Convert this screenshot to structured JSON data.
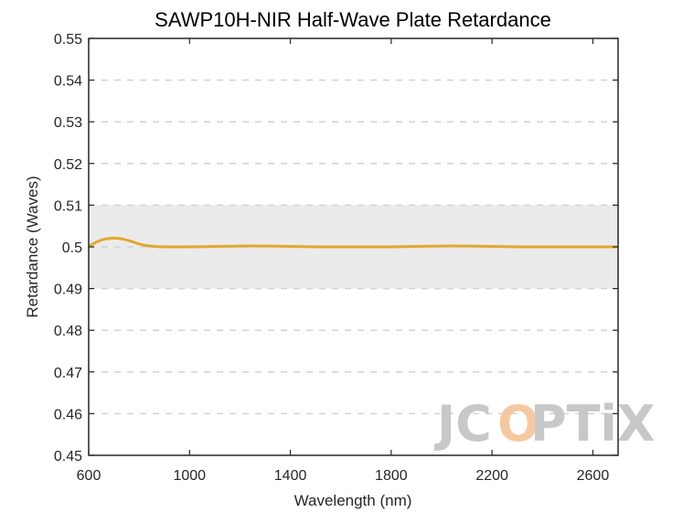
{
  "chart_data": {
    "type": "line",
    "title": "SAWP10H-NIR Half-Wave Plate Retardance",
    "xlabel": "Wavelength (nm)",
    "ylabel": "Retardance (Waves)",
    "xlim": [
      600,
      2700
    ],
    "ylim": [
      0.45,
      0.55
    ],
    "xticks": [
      600,
      1000,
      1400,
      1800,
      2200,
      2600
    ],
    "xtick_labels": [
      "600",
      "1000",
      "1400",
      "1800",
      "2200",
      "2600"
    ],
    "yticks": [
      0.45,
      0.46,
      0.47,
      0.48,
      0.49,
      0.5,
      0.51,
      0.52,
      0.53,
      0.54,
      0.55
    ],
    "ytick_labels": [
      "0.45",
      "0.46",
      "0.47",
      "0.48",
      "0.49",
      "0.5",
      "0.51",
      "0.52",
      "0.53",
      "0.54",
      "0.55"
    ],
    "grid": "horizontal dashed",
    "tolerance_band": [
      0.49,
      0.51
    ],
    "series": [
      {
        "x": [
          600,
          620,
          640,
          660,
          680,
          700,
          720,
          740,
          760,
          780,
          800,
          830,
          860,
          900,
          950,
          1000,
          1100,
          1200,
          1300,
          1400,
          1500,
          1600,
          1700,
          1800,
          1900,
          2000,
          2100,
          2200,
          2300,
          2400,
          2500,
          2600,
          2700
        ],
        "y": [
          0.5,
          0.5008,
          0.5014,
          0.5018,
          0.502,
          0.5021,
          0.502,
          0.5018,
          0.5015,
          0.5011,
          0.5007,
          0.5003,
          0.5001,
          0.5,
          0.5,
          0.5,
          0.5001,
          0.5002,
          0.5002,
          0.5001,
          0.5,
          0.5,
          0.5,
          0.5,
          0.5001,
          0.5002,
          0.5002,
          0.5001,
          0.5,
          0.5,
          0.5,
          0.5,
          0.5
        ],
        "color": "#e0a82e"
      }
    ]
  },
  "watermark": {
    "text_1": "JC",
    "text_2": "O",
    "text_3": "PTiX",
    "color": "#c8c8c8",
    "accent": "#f5c9a0"
  },
  "colors": {
    "band": "#ebebeb",
    "grid": "#d2d2d2",
    "axis": "#262626"
  }
}
